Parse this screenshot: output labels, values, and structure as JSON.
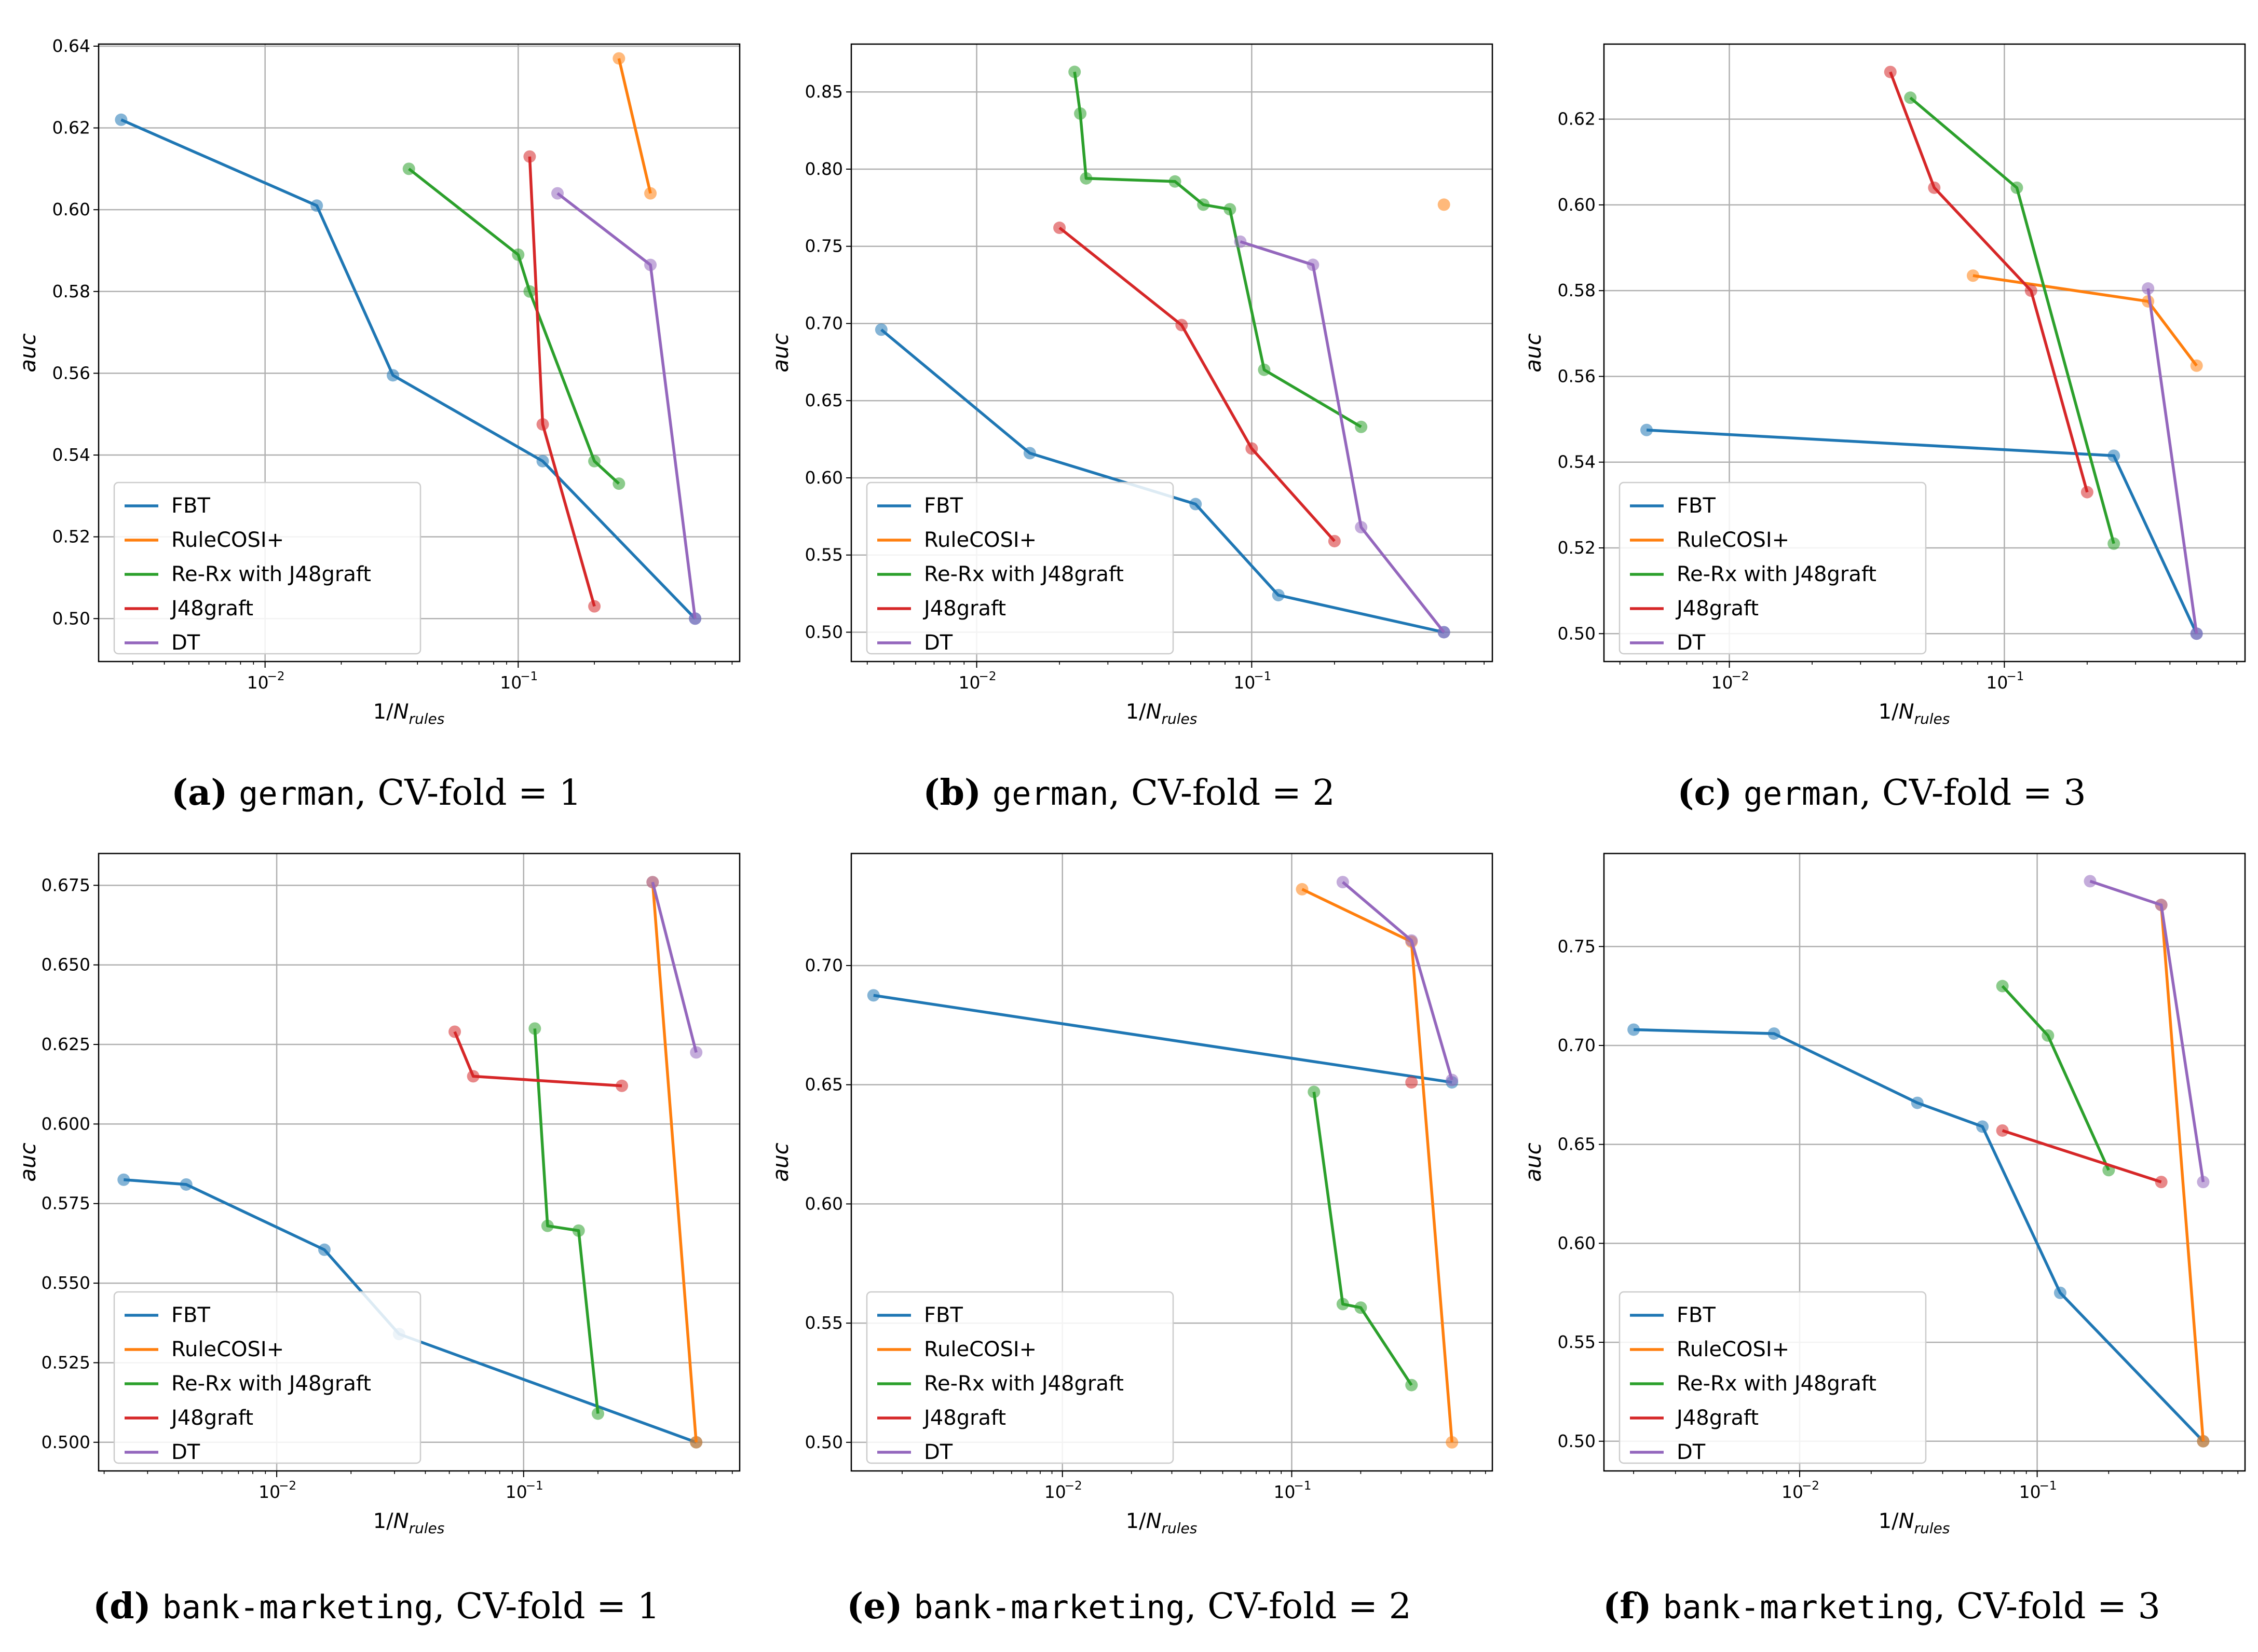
{
  "figure": {
    "legend_entries": [
      "FBT",
      "RuleCOSI+",
      "Re-Rx with J48graft",
      "J48graft",
      "DT"
    ],
    "colors": {
      "FBT": "#1f77b4",
      "RuleCOSI+": "#ff7f0e",
      "Re-Rx with J48graft": "#2ca02c",
      "J48graft": "#d62728",
      "DT": "#9467bd"
    }
  },
  "chart_data": [
    {
      "type": "line",
      "panel_id": "a",
      "caption": {
        "letter": "(a)",
        "dataset": "german",
        "rest": ", CV-fold = 1"
      },
      "xlabel": "1/N_rules",
      "ylabel": "auc",
      "xscale": "log",
      "xlim": [
        0.0022,
        0.75
      ],
      "ylim": [
        0.4895,
        0.6405
      ],
      "yticks": [
        "0.50",
        "0.52",
        "0.54",
        "0.56",
        "0.58",
        "0.60",
        "0.62",
        "0.64"
      ],
      "xtick_exponents": [
        -2,
        -1
      ],
      "legend": "lower-left",
      "series": [
        {
          "name": "FBT",
          "x": [
            0.0027,
            0.016,
            0.032,
            0.125,
            0.5
          ],
          "y": [
            0.622,
            0.601,
            0.5595,
            0.5385,
            0.5
          ]
        },
        {
          "name": "RuleCOSI+",
          "x": [
            0.25,
            0.333
          ],
          "y": [
            0.637,
            0.604
          ]
        },
        {
          "name": "Re-Rx with J48graft",
          "x": [
            0.037,
            0.1,
            0.111,
            0.2,
            0.25
          ],
          "y": [
            0.61,
            0.589,
            0.58,
            0.5385,
            0.533
          ]
        },
        {
          "name": "J48graft",
          "x": [
            0.111,
            0.125,
            0.2
          ],
          "y": [
            0.613,
            0.5475,
            0.503
          ]
        },
        {
          "name": "DT",
          "x": [
            0.143,
            0.333,
            0.5
          ],
          "y": [
            0.604,
            0.5865,
            0.5
          ]
        }
      ]
    },
    {
      "type": "line",
      "panel_id": "b",
      "caption": {
        "letter": "(b)",
        "dataset": "german",
        "rest": ", CV-fold = 2"
      },
      "xlabel": "1/N_rules",
      "ylabel": "auc",
      "xscale": "log",
      "xlim": [
        0.0035,
        0.75
      ],
      "ylim": [
        0.481,
        0.881
      ],
      "yticks": [
        "0.50",
        "0.55",
        "0.60",
        "0.65",
        "0.70",
        "0.75",
        "0.80",
        "0.85"
      ],
      "xtick_exponents": [
        -2,
        -1
      ],
      "legend": "lower-left",
      "series": [
        {
          "name": "FBT",
          "x": [
            0.0045,
            0.0156,
            0.0625,
            0.125,
            0.5
          ],
          "y": [
            0.696,
            0.616,
            0.583,
            0.524,
            0.5
          ]
        },
        {
          "name": "RuleCOSI+",
          "x": [
            0.5
          ],
          "y": [
            0.777
          ]
        },
        {
          "name": "Re-Rx with J48graft",
          "x": [
            0.0227,
            0.0238,
            0.025,
            0.0526,
            0.0667,
            0.0833,
            0.111,
            0.25
          ],
          "y": [
            0.863,
            0.836,
            0.794,
            0.792,
            0.777,
            0.774,
            0.67,
            0.633
          ]
        },
        {
          "name": "J48graft",
          "x": [
            0.02,
            0.0556,
            0.1,
            0.2
          ],
          "y": [
            0.762,
            0.699,
            0.619,
            0.559
          ]
        },
        {
          "name": "DT",
          "x": [
            0.0909,
            0.167,
            0.25,
            0.5
          ],
          "y": [
            0.753,
            0.738,
            0.568,
            0.5
          ]
        }
      ]
    },
    {
      "type": "line",
      "panel_id": "c",
      "caption": {
        "letter": "(c)",
        "dataset": "german",
        "rest": ", CV-fold = 3"
      },
      "xlabel": "1/N_rules",
      "ylabel": "auc",
      "xscale": "log",
      "xlim": [
        0.0035,
        0.75
      ],
      "ylim": [
        0.4935,
        0.6375
      ],
      "yticks": [
        "0.50",
        "0.52",
        "0.54",
        "0.56",
        "0.58",
        "0.60",
        "0.62"
      ],
      "xtick_exponents": [
        -2,
        -1
      ],
      "legend": "lower-left",
      "series": [
        {
          "name": "FBT",
          "x": [
            0.005,
            0.25,
            0.5
          ],
          "y": [
            0.5475,
            0.5415,
            0.5
          ]
        },
        {
          "name": "RuleCOSI+",
          "x": [
            0.0769,
            0.333,
            0.5
          ],
          "y": [
            0.5835,
            0.5775,
            0.5625
          ]
        },
        {
          "name": "Re-Rx with J48graft",
          "x": [
            0.0455,
            0.111,
            0.25
          ],
          "y": [
            0.625,
            0.604,
            0.521
          ]
        },
        {
          "name": "J48graft",
          "x": [
            0.0385,
            0.0556,
            0.125,
            0.2
          ],
          "y": [
            0.631,
            0.604,
            0.58,
            0.533
          ]
        },
        {
          "name": "DT",
          "x": [
            0.333,
            0.5
          ],
          "y": [
            0.5805,
            0.5
          ]
        }
      ]
    },
    {
      "type": "line",
      "panel_id": "d",
      "caption": {
        "letter": "(d)",
        "dataset": "bank-marketing",
        "rest": ", CV-fold = 1"
      },
      "xlabel": "1/N_rules",
      "ylabel": "auc",
      "xscale": "log",
      "xlim": [
        0.0019,
        0.75
      ],
      "ylim": [
        0.491,
        0.685
      ],
      "yticks": [
        "0.500",
        "0.525",
        "0.550",
        "0.575",
        "0.600",
        "0.625",
        "0.650",
        "0.675"
      ],
      "xtick_exponents": [
        -2,
        -1
      ],
      "legend": "lower-left",
      "series": [
        {
          "name": "FBT",
          "x": [
            0.0024,
            0.0043,
            0.0156,
            0.0313,
            0.5
          ],
          "y": [
            0.5825,
            0.581,
            0.5605,
            0.534,
            0.5
          ]
        },
        {
          "name": "RuleCOSI+",
          "x": [
            0.333,
            0.5
          ],
          "y": [
            0.676,
            0.5
          ]
        },
        {
          "name": "Re-Rx with J48graft",
          "x": [
            0.111,
            0.125,
            0.167,
            0.2
          ],
          "y": [
            0.63,
            0.568,
            0.5665,
            0.509
          ]
        },
        {
          "name": "J48graft",
          "x": [
            0.0526,
            0.0625,
            0.25
          ],
          "y": [
            0.629,
            0.615,
            0.612
          ]
        },
        {
          "name": "DT",
          "x": [
            0.333,
            0.5
          ],
          "y": [
            0.676,
            0.6225
          ]
        }
      ]
    },
    {
      "type": "line",
      "panel_id": "e",
      "caption": {
        "letter": "(e)",
        "dataset": "bank-marketing",
        "rest": ", CV-fold = 2"
      },
      "xlabel": "1/N_rules",
      "ylabel": "auc",
      "xscale": "log",
      "xlim": [
        0.0012,
        0.75
      ],
      "ylim": [
        0.488,
        0.747
      ],
      "yticks": [
        "0.50",
        "0.55",
        "0.60",
        "0.65",
        "0.70"
      ],
      "xtick_exponents": [
        -2,
        -1
      ],
      "legend": "lower-left",
      "series": [
        {
          "name": "FBT",
          "x": [
            0.0015,
            0.5
          ],
          "y": [
            0.6875,
            0.651
          ]
        },
        {
          "name": "RuleCOSI+",
          "x": [
            0.111,
            0.333,
            0.5
          ],
          "y": [
            0.732,
            0.71,
            0.5
          ]
        },
        {
          "name": "Re-Rx with J48graft",
          "x": [
            0.125,
            0.167,
            0.2,
            0.333
          ],
          "y": [
            0.647,
            0.558,
            0.5565,
            0.524
          ]
        },
        {
          "name": "J48graft",
          "x": [
            0.333
          ],
          "y": [
            0.651
          ]
        },
        {
          "name": "DT",
          "x": [
            0.167,
            0.333,
            0.5
          ],
          "y": [
            0.735,
            0.7105,
            0.652
          ]
        }
      ]
    },
    {
      "type": "line",
      "panel_id": "f",
      "caption": {
        "letter": "(f)",
        "dataset": "bank-marketing",
        "rest": ", CV-fold = 3"
      },
      "xlabel": "1/N_rules",
      "ylabel": "auc",
      "xscale": "log",
      "xlim": [
        0.0015,
        0.75
      ],
      "ylim": [
        0.485,
        0.797
      ],
      "yticks": [
        "0.50",
        "0.55",
        "0.60",
        "0.65",
        "0.70",
        "0.75"
      ],
      "xtick_exponents": [
        -2,
        -1
      ],
      "legend": "lower-left",
      "series": [
        {
          "name": "FBT",
          "x": [
            0.002,
            0.0078,
            0.0313,
            0.0588,
            0.125,
            0.5
          ],
          "y": [
            0.708,
            0.706,
            0.671,
            0.659,
            0.575,
            0.5
          ]
        },
        {
          "name": "RuleCOSI+",
          "x": [
            0.333,
            0.5
          ],
          "y": [
            0.771,
            0.5
          ]
        },
        {
          "name": "Re-Rx with J48graft",
          "x": [
            0.0714,
            0.111,
            0.2
          ],
          "y": [
            0.73,
            0.705,
            0.637
          ]
        },
        {
          "name": "J48graft",
          "x": [
            0.0714,
            0.333
          ],
          "y": [
            0.657,
            0.631
          ]
        },
        {
          "name": "DT",
          "x": [
            0.167,
            0.333,
            0.5
          ],
          "y": [
            0.783,
            0.771,
            0.631
          ]
        }
      ]
    }
  ]
}
